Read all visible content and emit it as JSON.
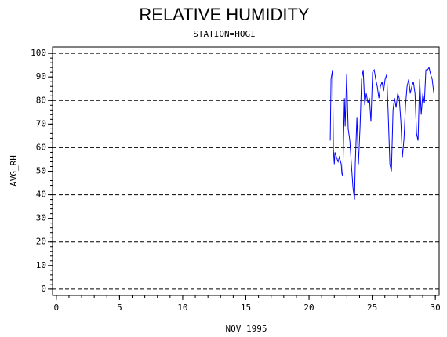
{
  "chart_data": {
    "type": "line",
    "title": "RELATIVE HUMIDITY",
    "subtitle": "STATION=HOGI",
    "x_label": "NOV 1995",
    "y_label": "AVG_RH",
    "color": "#0000ff",
    "x": [
      21.68,
      21.74,
      21.86,
      21.93,
      22.0,
      22.05,
      22.17,
      22.3,
      22.4,
      22.55,
      22.6,
      22.67,
      22.8,
      22.86,
      22.98,
      23.04,
      23.1,
      23.23,
      23.35,
      23.48,
      23.6,
      23.66,
      23.79,
      23.91,
      24.04,
      24.16,
      24.29,
      24.41,
      24.53,
      24.66,
      24.78,
      24.9,
      25.03,
      25.16,
      25.28,
      25.4,
      25.53,
      25.65,
      25.78,
      25.9,
      26.02,
      26.15,
      26.27,
      26.4,
      26.52,
      26.65,
      26.77,
      26.89,
      27.02,
      27.14,
      27.27,
      27.39,
      27.52,
      27.64,
      27.76,
      27.89,
      28.01,
      28.14,
      28.26,
      28.39,
      28.51,
      28.63,
      28.76,
      28.88,
      29.01,
      29.13,
      29.25,
      29.38,
      29.5,
      29.63,
      29.75,
      29.88
    ],
    "values": [
      63,
      89,
      93,
      59,
      53,
      58,
      56,
      54,
      56,
      53,
      49,
      48,
      81,
      69,
      91,
      79,
      68,
      63,
      53,
      43,
      38,
      53,
      73,
      53,
      69,
      89,
      93,
      78,
      83,
      79,
      81,
      71,
      92,
      93,
      89,
      86,
      81,
      86,
      88,
      84,
      89,
      91,
      74,
      53,
      50,
      76,
      81,
      77,
      83,
      81,
      71,
      56,
      64,
      78,
      86,
      89,
      83,
      86,
      88,
      83,
      66,
      63,
      89,
      74,
      83,
      79,
      93,
      93,
      94,
      91,
      89,
      83
    ],
    "xlim": [
      -0.3,
      30.3
    ],
    "ylim": [
      -2.7,
      102.7
    ],
    "xticks": [
      0,
      5,
      10,
      15,
      20,
      25,
      30
    ],
    "yticks": [
      0,
      10,
      20,
      30,
      40,
      50,
      60,
      70,
      80,
      90,
      100
    ],
    "grid_step": 20,
    "x_minor_step": 1,
    "y_minor_step": 2
  }
}
